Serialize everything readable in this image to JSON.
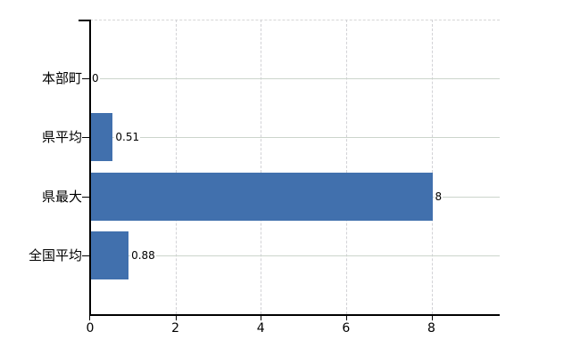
{
  "chart_data": {
    "type": "bar",
    "orientation": "horizontal",
    "title": "",
    "xlabel": "",
    "ylabel": "",
    "categories": [
      "本部町",
      "県平均",
      "県最大",
      "全国平均"
    ],
    "values": [
      0,
      0.51,
      8,
      0.88
    ],
    "value_labels": [
      "0",
      "0.51",
      "8",
      "0.88"
    ],
    "x_ticks": [
      0,
      2,
      4,
      6,
      8
    ],
    "x_tick_labels": [
      "0",
      "2",
      "4",
      "6",
      "8"
    ],
    "xlim": [
      0,
      9.6
    ],
    "grid": true,
    "legend_position": "none",
    "colors": {
      "bar": "#4170ad",
      "axis": "#000000",
      "h_gridline": "#ccd5cc",
      "v_gridline": "#d2d2d6",
      "top_border": "#d6d6d6",
      "text": "#000000",
      "background": "#ffffff"
    }
  }
}
